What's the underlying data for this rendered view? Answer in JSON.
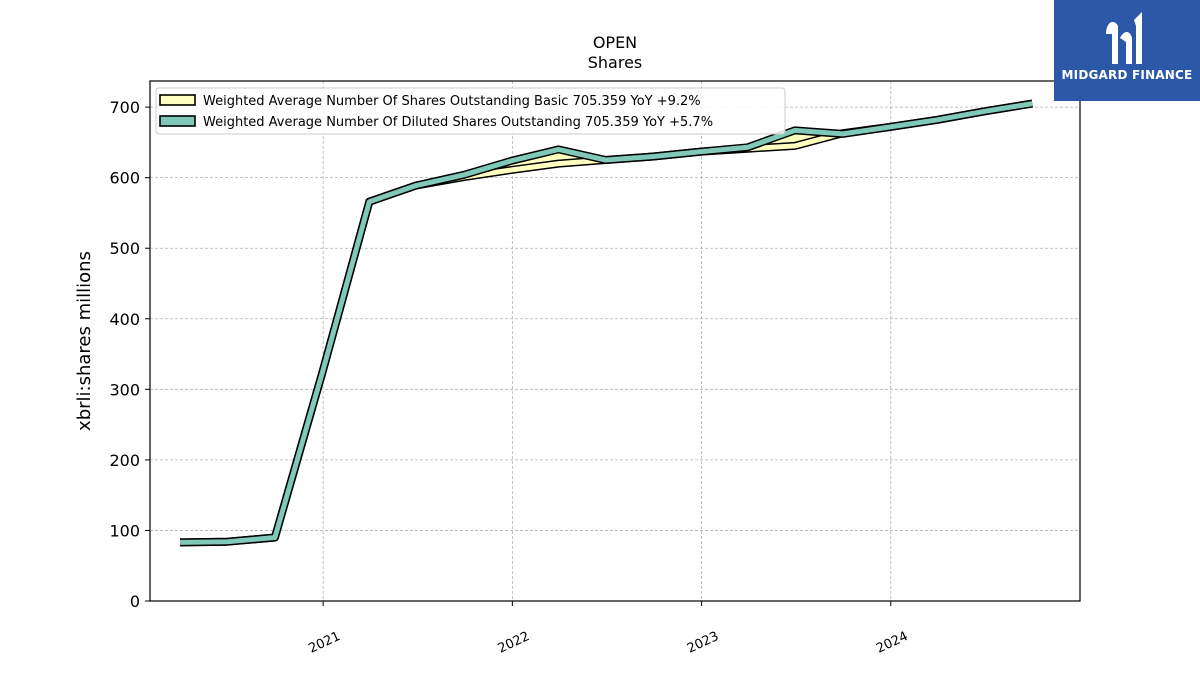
{
  "brand": {
    "name": "MIDGARD FINANCE",
    "logo_icon": "midgard-logo-icon",
    "background": "#2b59a8"
  },
  "chart_data": {
    "type": "line",
    "title": "OPEN",
    "subtitle": "Shares",
    "ylabel": "xbrli:shares millions",
    "xlabel": "",
    "ylim": [
      0,
      737
    ],
    "xlim": [
      "2020-02-02",
      "2024-12-31"
    ],
    "x_ticks": [
      {
        "date": "2021-01-01",
        "label": "2021"
      },
      {
        "date": "2022-01-01",
        "label": "2022"
      },
      {
        "date": "2023-01-01",
        "label": "2023"
      },
      {
        "date": "2024-01-01",
        "label": "2024"
      }
    ],
    "y_ticks": [
      0,
      100,
      200,
      300,
      400,
      500,
      600,
      700
    ],
    "grid": true,
    "legend_position": "top-left",
    "x": [
      "2020-03-31",
      "2020-06-30",
      "2020-09-30",
      "2020-12-31",
      "2021-03-31",
      "2021-06-30",
      "2021-09-30",
      "2021-12-31",
      "2022-03-31",
      "2022-06-30",
      "2022-09-30",
      "2022-12-31",
      "2023-03-31",
      "2023-06-30",
      "2023-09-30",
      "2023-12-31",
      "2024-03-31",
      "2024-06-30",
      "2024-09-30"
    ],
    "series": [
      {
        "name": "Weighted Average Number Of Shares Outstanding Basic  705.359 YoY +9.2%",
        "color": "#ffffc0",
        "values": [
          83,
          84,
          90,
          325,
          566,
          589,
          601,
          611,
          620,
          625,
          630,
          637,
          641,
          645,
          663,
          672,
          682,
          694,
          705
        ]
      },
      {
        "name": "Weighted Average Number Of Diluted Shares Outstanding  705.359 YoY +5.7%",
        "color": "#80c8b8",
        "values": [
          83,
          84,
          90,
          325,
          566,
          589,
          604,
          624,
          640,
          625,
          630,
          637,
          643,
          667,
          662,
          672,
          682,
          694,
          705
        ]
      }
    ]
  }
}
